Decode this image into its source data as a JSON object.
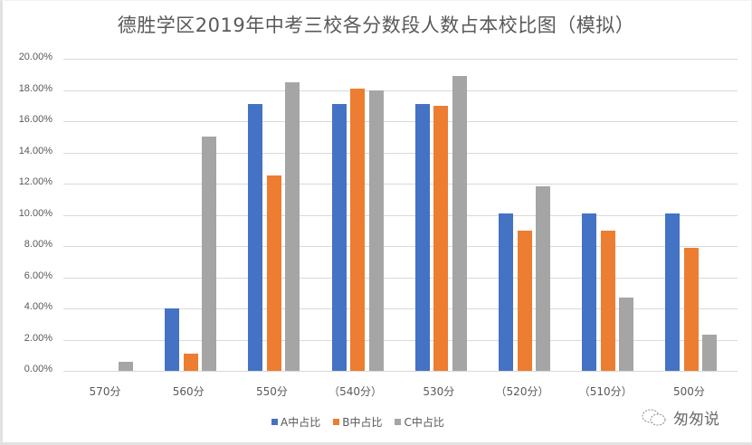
{
  "chart_data": {
    "type": "bar",
    "title": "德胜学区2019年中考三校各分数段人数占本校比图（模拟）",
    "xlabel": "",
    "ylabel": "",
    "ylim": [
      0,
      20
    ],
    "yticks": [
      "0.00%",
      "2.00%",
      "4.00%",
      "6.00%",
      "8.00%",
      "10.00%",
      "12.00%",
      "14.00%",
      "16.00%",
      "18.00%",
      "20.00%"
    ],
    "grid": true,
    "legend_position": "bottom",
    "categories": [
      "570分",
      "560分",
      "550分",
      "（540分）",
      "530分",
      "（520分）",
      "（510分）",
      "500分"
    ],
    "series": [
      {
        "name": "A中占比",
        "color": "#4472C4",
        "values": [
          0,
          4.0,
          17.1,
          17.1,
          17.1,
          10.1,
          10.1,
          10.1
        ]
      },
      {
        "name": "B中占比",
        "color": "#ED7D31",
        "values": [
          0,
          1.1,
          12.5,
          18.1,
          17.0,
          9.0,
          9.0,
          7.9
        ]
      },
      {
        "name": "C中占比",
        "color": "#A5A5A5",
        "values": [
          0.6,
          15.0,
          18.5,
          18.0,
          18.9,
          11.8,
          4.7,
          2.3
        ]
      }
    ]
  },
  "watermark": {
    "text": "匆匆说",
    "icon": "wechat-bubble-icon"
  }
}
